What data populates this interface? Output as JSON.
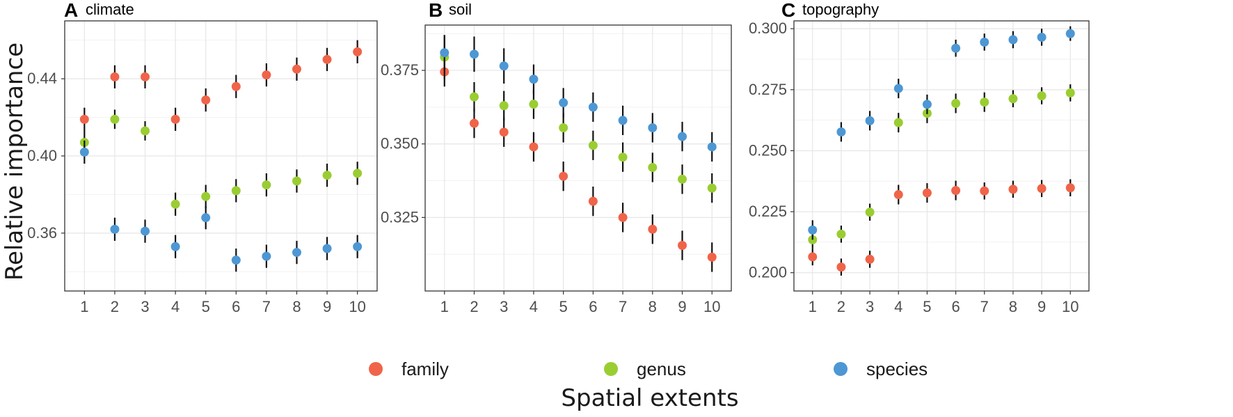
{
  "ylabel": "Relative importance",
  "xlabel": "Spatial extents",
  "legend": [
    {
      "name": "family",
      "color": "#f06449"
    },
    {
      "name": "genus",
      "color": "#9acd32"
    },
    {
      "name": "species",
      "color": "#4d97d4"
    }
  ],
  "chart_data": [
    {
      "type": "scatter",
      "letter": "A",
      "title": "climate",
      "x": [
        1,
        2,
        3,
        4,
        5,
        6,
        7,
        8,
        9,
        10
      ],
      "xticks": [
        "1",
        "2",
        "3",
        "4",
        "5",
        "6",
        "7",
        "8",
        "9",
        "10"
      ],
      "ylim": [
        0.33,
        0.47
      ],
      "yticks": [
        0.36,
        0.4,
        0.44
      ],
      "ytick_labels": [
        "0.36",
        "0.40",
        "0.44"
      ],
      "series": [
        {
          "name": "family",
          "values": [
            0.419,
            0.441,
            0.441,
            0.419,
            0.429,
            0.436,
            0.442,
            0.445,
            0.45,
            0.454
          ],
          "err": [
            0.006,
            0.006,
            0.006,
            0.006,
            0.006,
            0.006,
            0.006,
            0.006,
            0.006,
            0.006
          ]
        },
        {
          "name": "genus",
          "values": [
            0.407,
            0.419,
            0.413,
            0.375,
            0.379,
            0.382,
            0.385,
            0.387,
            0.39,
            0.391
          ],
          "err": [
            0.006,
            0.005,
            0.005,
            0.006,
            0.006,
            0.006,
            0.006,
            0.006,
            0.006,
            0.006
          ]
        },
        {
          "name": "species",
          "values": [
            0.402,
            0.362,
            0.361,
            0.353,
            0.368,
            0.346,
            0.348,
            0.35,
            0.352,
            0.353
          ],
          "err": [
            0.006,
            0.006,
            0.006,
            0.006,
            0.006,
            0.006,
            0.006,
            0.006,
            0.006,
            0.006
          ]
        }
      ]
    },
    {
      "type": "scatter",
      "letter": "B",
      "title": "soil",
      "x": [
        1,
        2,
        3,
        4,
        5,
        6,
        7,
        8,
        9,
        10
      ],
      "xticks": [
        "1",
        "2",
        "3",
        "4",
        "5",
        "6",
        "7",
        "8",
        "9",
        "10"
      ],
      "ylim": [
        0.3,
        0.3904
      ],
      "yticks": [
        0.325,
        0.35,
        0.375
      ],
      "ytick_labels": [
        "0.325",
        "0.350",
        "0.375"
      ],
      "series": [
        {
          "name": "family",
          "values": [
            0.3745,
            0.357,
            0.354,
            0.349,
            0.339,
            0.3305,
            0.325,
            0.321,
            0.3155,
            0.3115
          ],
          "err": [
            0.005,
            0.005,
            0.005,
            0.005,
            0.005,
            0.005,
            0.005,
            0.005,
            0.005,
            0.005
          ]
        },
        {
          "name": "genus",
          "values": [
            0.3795,
            0.366,
            0.363,
            0.3635,
            0.3555,
            0.3495,
            0.3455,
            0.342,
            0.338,
            0.335
          ],
          "err": [
            0.0075,
            0.005,
            0.005,
            0.005,
            0.005,
            0.005,
            0.005,
            0.005,
            0.005,
            0.005
          ]
        },
        {
          "name": "species",
          "values": [
            0.381,
            0.3805,
            0.3765,
            0.372,
            0.364,
            0.3625,
            0.358,
            0.3555,
            0.3525,
            0.349
          ],
          "err": [
            0.006,
            0.006,
            0.006,
            0.005,
            0.005,
            0.005,
            0.005,
            0.005,
            0.005,
            0.005
          ]
        }
      ]
    },
    {
      "type": "scatter",
      "letter": "C",
      "title": "topography",
      "x": [
        1,
        2,
        3,
        4,
        5,
        6,
        7,
        8,
        9,
        10
      ],
      "xticks": [
        "1",
        "2",
        "3",
        "4",
        "5",
        "6",
        "7",
        "8",
        "9",
        "10"
      ],
      "ylim": [
        0.1925,
        0.3032
      ],
      "yticks": [
        0.2,
        0.225,
        0.25,
        0.275,
        0.3
      ],
      "ytick_labels": [
        "0.200",
        "0.225",
        "0.250",
        "0.275",
        "0.300"
      ],
      "series": [
        {
          "name": "family",
          "values": [
            0.2065,
            0.2023,
            0.2055,
            0.232,
            0.2327,
            0.2337,
            0.2335,
            0.2342,
            0.2345,
            0.2348
          ],
          "err": [
            0.0035,
            0.0035,
            0.0035,
            0.004,
            0.004,
            0.004,
            0.0035,
            0.0035,
            0.0035,
            0.0035
          ]
        },
        {
          "name": "genus",
          "values": [
            0.2135,
            0.2158,
            0.2248,
            0.2615,
            0.2653,
            0.2694,
            0.2699,
            0.2713,
            0.2725,
            0.2737
          ],
          "err": [
            0.0035,
            0.0035,
            0.0035,
            0.004,
            0.004,
            0.004,
            0.004,
            0.0035,
            0.0035,
            0.0035
          ]
        },
        {
          "name": "species",
          "values": [
            0.2175,
            0.2577,
            0.2623,
            0.2755,
            0.269,
            0.292,
            0.2945,
            0.2955,
            0.2965,
            0.298
          ],
          "err": [
            0.004,
            0.004,
            0.004,
            0.004,
            0.004,
            0.0035,
            0.0035,
            0.0035,
            0.0035,
            0.003
          ]
        }
      ]
    }
  ]
}
